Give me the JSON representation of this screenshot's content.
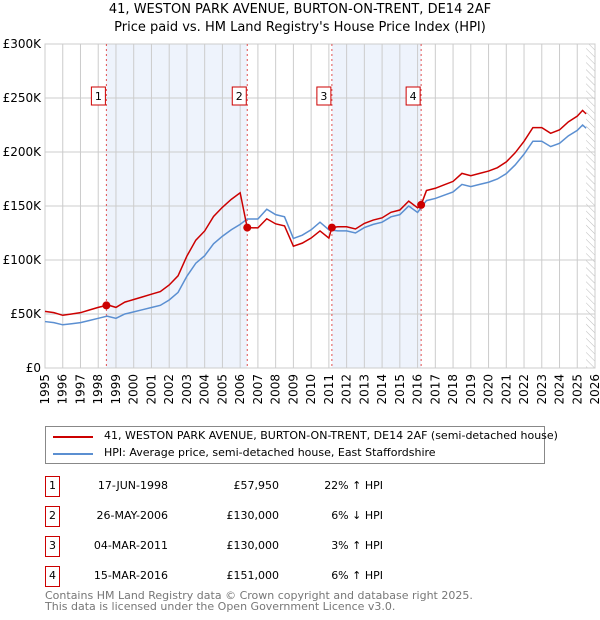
{
  "chart_data": {
    "type": "line",
    "title": "41, WESTON PARK AVENUE, BURTON-ON-TRENT, DE14 2AF",
    "subtitle": "Price paid vs. HM Land Registry's House Price Index (HPI)",
    "xlim": [
      1995,
      2026
    ],
    "ylim": [
      0,
      300000
    ],
    "y_ticks": [
      {
        "v": 0,
        "label": "£0"
      },
      {
        "v": 50000,
        "label": "£50K"
      },
      {
        "v": 100000,
        "label": "£100K"
      },
      {
        "v": 150000,
        "label": "£150K"
      },
      {
        "v": 200000,
        "label": "£200K"
      },
      {
        "v": 250000,
        "label": "£250K"
      },
      {
        "v": 300000,
        "label": "£300K"
      }
    ],
    "x_ticks": [
      "1995",
      "1996",
      "1997",
      "1998",
      "1999",
      "2000",
      "2001",
      "2002",
      "2003",
      "2004",
      "2005",
      "2006",
      "2007",
      "2008",
      "2009",
      "2010",
      "2011",
      "2012",
      "2013",
      "2014",
      "2015",
      "2016",
      "2017",
      "2018",
      "2019",
      "2020",
      "2021",
      "2022",
      "2023",
      "2024",
      "2025",
      "2026"
    ],
    "grid": true,
    "forecast_hatch_from": 2025.5,
    "colors": {
      "price": "#cc0000",
      "hpi": "#5b8fd1",
      "band": "#eef3fc",
      "marker": "#cc0000"
    },
    "hpi_series": {
      "name": "HPI: Average price, semi-detached house, East Staffordshire",
      "x": [
        1995,
        1995.5,
        1996,
        1996.5,
        1997,
        1997.5,
        1998,
        1998.5,
        1999,
        1999.5,
        2000,
        2000.5,
        2001,
        2001.5,
        2002,
        2002.5,
        2003,
        2003.5,
        2004,
        2004.5,
        2005,
        2005.5,
        2006,
        2006.4,
        2007,
        2007.5,
        2008,
        2008.5,
        2009,
        2009.5,
        2010,
        2010.5,
        2011,
        2011.5,
        2012,
        2012.5,
        2013,
        2013.5,
        2014,
        2014.5,
        2015,
        2015.5,
        2016,
        2016.5,
        2017,
        2017.5,
        2018,
        2018.5,
        2019,
        2019.5,
        2020,
        2020.5,
        2021,
        2021.5,
        2022,
        2022.5,
        2023,
        2023.5,
        2024,
        2024.5,
        2025,
        2025.3,
        2025.5
      ],
      "values": [
        43000,
        42000,
        40000,
        41000,
        42000,
        44000,
        46000,
        48000,
        46000,
        50000,
        52000,
        54000,
        56000,
        58000,
        63000,
        70000,
        85000,
        97000,
        104000,
        115000,
        122000,
        128000,
        133000,
        138000,
        138000,
        147000,
        142000,
        140000,
        120000,
        123000,
        128000,
        135000,
        128000,
        127000,
        127000,
        125000,
        130000,
        133000,
        135000,
        140000,
        142000,
        150000,
        144000,
        155000,
        157000,
        160000,
        163000,
        170000,
        168000,
        170000,
        172000,
        175000,
        180000,
        188000,
        198000,
        210000,
        210000,
        205000,
        208000,
        215000,
        220000,
        225000,
        222000
      ]
    },
    "price_series": {
      "name": "41, WESTON PARK AVENUE, BURTON-ON-TRENT, DE14 2AF (semi-detached house)",
      "segment_ratios": [
        {
          "until": 2006.4,
          "ratio": 1.22
        },
        {
          "until": 2011.17,
          "ratio": 0.94
        },
        {
          "until": 2016.2,
          "ratio": 1.03
        },
        {
          "until": 2026,
          "ratio": 1.06
        }
      ]
    },
    "sales": [
      {
        "id": "1",
        "x": 1998.46,
        "date": "17-JUN-1998",
        "price": 57950,
        "price_label": "£57,950",
        "hpi_change": "22% ↑ HPI"
      },
      {
        "id": "2",
        "x": 2006.4,
        "date": "26-MAY-2006",
        "price": 130000,
        "price_label": "£130,000",
        "hpi_change": "6% ↓ HPI"
      },
      {
        "id": "3",
        "x": 2011.17,
        "date": "04-MAR-2011",
        "price": 130000,
        "price_label": "£130,000",
        "hpi_change": "3% ↑ HPI"
      },
      {
        "id": "4",
        "x": 2016.2,
        "date": "15-MAR-2016",
        "price": 151000,
        "price_label": "£151,000",
        "hpi_change": "6% ↑ HPI"
      }
    ],
    "bands": [
      [
        1998.46,
        2006.4
      ],
      [
        2011.17,
        2016.2
      ]
    ]
  },
  "legend": {
    "price": "41, WESTON PARK AVENUE, BURTON-ON-TRENT, DE14 2AF (semi-detached house)",
    "hpi": "HPI: Average price, semi-detached house, East Staffordshire"
  },
  "footer": {
    "line1": "Contains HM Land Registry data © Crown copyright and database right 2025.",
    "line2": "This data is licensed under the Open Government Licence v3.0."
  }
}
